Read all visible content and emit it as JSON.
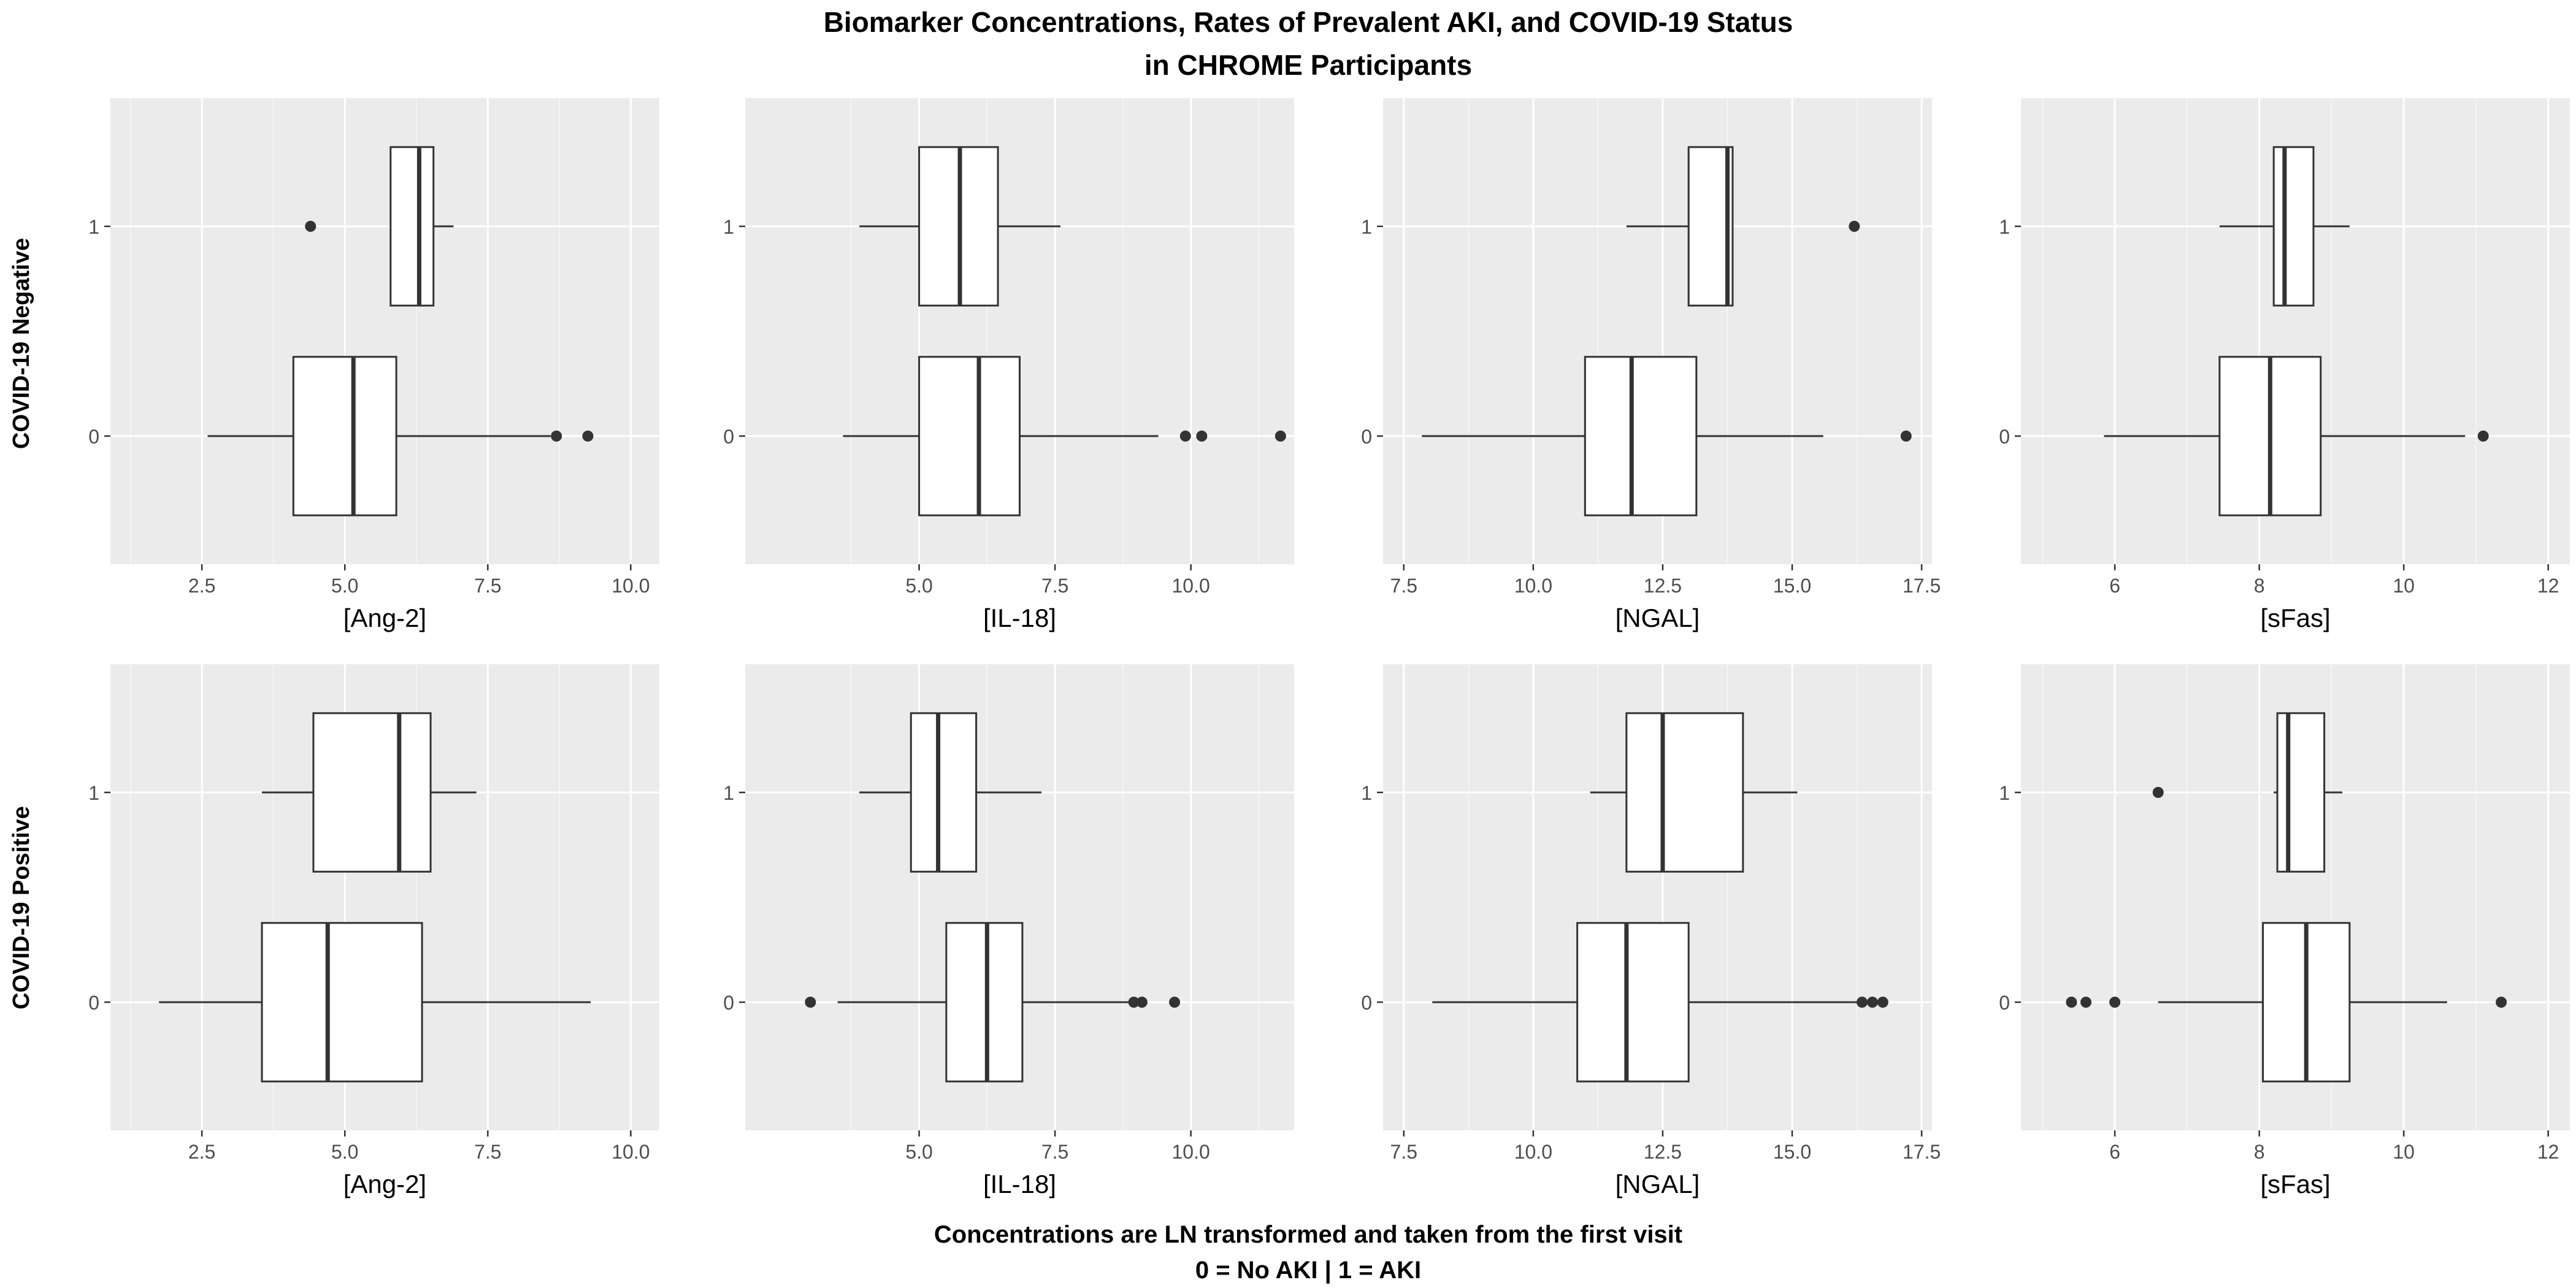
{
  "figure": {
    "title_line1": "Biomarker Concentrations, Rates of Prevalent AKI, and COVID-19 Status",
    "title_line2": "in CHROME Participants",
    "caption_line1": "Concentrations are LN transformed and taken from the first visit",
    "caption_line2": "0 = No AKI | 1 = AKI",
    "row_labels": [
      "COVID-19 Negative",
      "COVID-19 Positive"
    ]
  },
  "colors": {
    "panel_bg": "#ebebeb",
    "grid_major": "#ffffff",
    "box_fill": "#ffffff",
    "box_line": "#333333",
    "outlier": "#333333",
    "text": "#000000",
    "tick_text": "#4d4d4d"
  },
  "chart_data": [
    {
      "type": "boxplot",
      "row": "COVID-19 Negative",
      "xlabel": "[Ang-2]",
      "xlim": [
        0.9,
        10.5
      ],
      "xticks": [
        2.5,
        5.0,
        7.5,
        10.0
      ],
      "xtick_labels": [
        "2.5",
        "5.0",
        "7.5",
        "10.0"
      ],
      "y_categories": [
        "0",
        "1"
      ],
      "grid": true,
      "boxes": [
        {
          "group": "1",
          "whisker_low": 5.8,
          "q1": 5.8,
          "median": 6.3,
          "q3": 6.55,
          "whisker_high": 6.9,
          "outliers": [
            4.4
          ]
        },
        {
          "group": "0",
          "whisker_low": 2.6,
          "q1": 4.1,
          "median": 5.15,
          "q3": 5.9,
          "whisker_high": 8.6,
          "outliers": [
            8.7,
            9.25
          ]
        }
      ]
    },
    {
      "type": "boxplot",
      "row": "COVID-19 Negative",
      "xlabel": "[IL-18]",
      "xlim": [
        1.8,
        11.9
      ],
      "xticks": [
        5.0,
        7.5,
        10.0
      ],
      "xtick_labels": [
        "5.0",
        "7.5",
        "10.0"
      ],
      "y_categories": [
        "0",
        "1"
      ],
      "grid": true,
      "boxes": [
        {
          "group": "1",
          "whisker_low": 3.9,
          "q1": 5.0,
          "median": 5.75,
          "q3": 6.45,
          "whisker_high": 7.6,
          "outliers": []
        },
        {
          "group": "0",
          "whisker_low": 3.6,
          "q1": 5.0,
          "median": 6.1,
          "q3": 6.85,
          "whisker_high": 9.4,
          "outliers": [
            9.9,
            10.2,
            11.65
          ]
        }
      ]
    },
    {
      "type": "boxplot",
      "row": "COVID-19 Negative",
      "xlabel": "[NGAL]",
      "xlim": [
        7.1,
        17.7
      ],
      "xticks": [
        7.5,
        10.0,
        12.5,
        15.0,
        17.5
      ],
      "xtick_labels": [
        "7.5",
        "10.0",
        "12.5",
        "15.0",
        "17.5"
      ],
      "y_categories": [
        "0",
        "1"
      ],
      "grid": true,
      "boxes": [
        {
          "group": "1",
          "whisker_low": 11.8,
          "q1": 13.0,
          "median": 13.75,
          "q3": 13.85,
          "whisker_high": 13.85,
          "outliers": [
            16.2
          ]
        },
        {
          "group": "0",
          "whisker_low": 7.85,
          "q1": 11.0,
          "median": 11.9,
          "q3": 13.15,
          "whisker_high": 15.6,
          "outliers": [
            17.2
          ]
        }
      ]
    },
    {
      "type": "boxplot",
      "row": "COVID-19 Negative",
      "xlabel": "[sFas]",
      "xlim": [
        4.7,
        12.3
      ],
      "xticks": [
        6,
        8,
        10,
        12
      ],
      "xtick_labels": [
        "6",
        "8",
        "10",
        "12"
      ],
      "y_categories": [
        "0",
        "1"
      ],
      "grid": true,
      "boxes": [
        {
          "group": "1",
          "whisker_low": 7.45,
          "q1": 8.2,
          "median": 8.35,
          "q3": 8.75,
          "whisker_high": 9.25,
          "outliers": []
        },
        {
          "group": "0",
          "whisker_low": 5.85,
          "q1": 7.45,
          "median": 8.15,
          "q3": 8.85,
          "whisker_high": 10.85,
          "outliers": [
            11.1
          ]
        }
      ]
    },
    {
      "type": "boxplot",
      "row": "COVID-19 Positive",
      "xlabel": "[Ang-2]",
      "xlim": [
        0.9,
        10.5
      ],
      "xticks": [
        2.5,
        5.0,
        7.5,
        10.0
      ],
      "xtick_labels": [
        "2.5",
        "5.0",
        "7.5",
        "10.0"
      ],
      "y_categories": [
        "0",
        "1"
      ],
      "grid": true,
      "boxes": [
        {
          "group": "1",
          "whisker_low": 3.55,
          "q1": 4.45,
          "median": 5.95,
          "q3": 6.5,
          "whisker_high": 7.3,
          "outliers": []
        },
        {
          "group": "0",
          "whisker_low": 1.75,
          "q1": 3.55,
          "median": 4.7,
          "q3": 6.35,
          "whisker_high": 9.3,
          "outliers": []
        }
      ]
    },
    {
      "type": "boxplot",
      "row": "COVID-19 Positive",
      "xlabel": "[IL-18]",
      "xlim": [
        1.8,
        11.9
      ],
      "xticks": [
        5.0,
        7.5,
        10.0
      ],
      "xtick_labels": [
        "5.0",
        "7.5",
        "10.0"
      ],
      "y_categories": [
        "0",
        "1"
      ],
      "grid": true,
      "boxes": [
        {
          "group": "1",
          "whisker_low": 3.9,
          "q1": 4.85,
          "median": 5.35,
          "q3": 6.05,
          "whisker_high": 7.25,
          "outliers": []
        },
        {
          "group": "0",
          "whisker_low": 3.5,
          "q1": 5.5,
          "median": 6.25,
          "q3": 6.9,
          "whisker_high": 8.9,
          "outliers": [
            3.0,
            8.95,
            9.1,
            9.7
          ]
        }
      ]
    },
    {
      "type": "boxplot",
      "row": "COVID-19 Positive",
      "xlabel": "[NGAL]",
      "xlim": [
        7.1,
        17.7
      ],
      "xticks": [
        7.5,
        10.0,
        12.5,
        15.0,
        17.5
      ],
      "xtick_labels": [
        "7.5",
        "10.0",
        "12.5",
        "15.0",
        "17.5"
      ],
      "y_categories": [
        "0",
        "1"
      ],
      "grid": true,
      "boxes": [
        {
          "group": "1",
          "whisker_low": 11.1,
          "q1": 11.8,
          "median": 12.5,
          "q3": 14.05,
          "whisker_high": 15.1,
          "outliers": []
        },
        {
          "group": "0",
          "whisker_low": 8.05,
          "q1": 10.85,
          "median": 11.8,
          "q3": 13.0,
          "whisker_high": 16.25,
          "outliers": [
            16.35,
            16.55,
            16.75
          ]
        }
      ]
    },
    {
      "type": "boxplot",
      "row": "COVID-19 Positive",
      "xlabel": "[sFas]",
      "xlim": [
        4.7,
        12.3
      ],
      "xticks": [
        6,
        8,
        10,
        12
      ],
      "xtick_labels": [
        "6",
        "8",
        "10",
        "12"
      ],
      "y_categories": [
        "0",
        "1"
      ],
      "grid": true,
      "boxes": [
        {
          "group": "1",
          "whisker_low": 8.2,
          "q1": 8.25,
          "median": 8.4,
          "q3": 8.9,
          "whisker_high": 9.15,
          "outliers": [
            6.6
          ]
        },
        {
          "group": "0",
          "whisker_low": 6.6,
          "q1": 8.05,
          "median": 8.65,
          "q3": 9.25,
          "whisker_high": 10.6,
          "outliers": [
            5.4,
            5.6,
            6.0,
            11.35
          ]
        }
      ]
    }
  ]
}
